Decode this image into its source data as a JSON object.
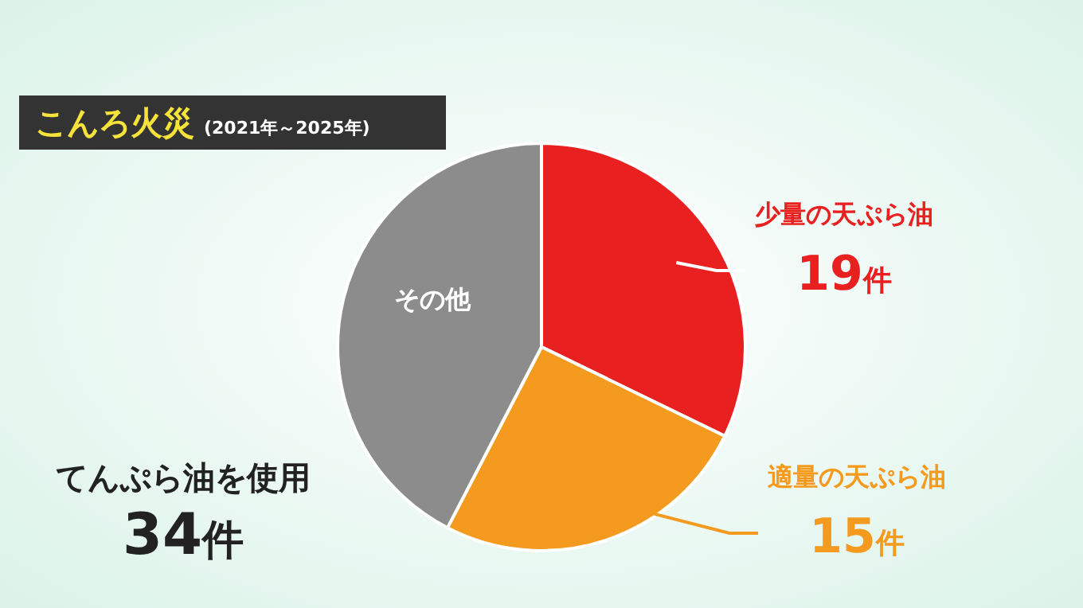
{
  "chart_data": {
    "type": "pie",
    "title": "こんろ火災",
    "subtitle": "(2021年～2025年)",
    "categories": [
      "少量の天ぷら油",
      "適量の天ぷら油",
      "その他"
    ],
    "values": [
      19,
      15,
      25
    ],
    "colors": [
      "#e8201f",
      "#f39a1f",
      "#8c8c8c"
    ],
    "value_labels": [
      "19件",
      "15件",
      null
    ],
    "annotations": [
      "てんぷら油を使用",
      "34件"
    ]
  }
}
